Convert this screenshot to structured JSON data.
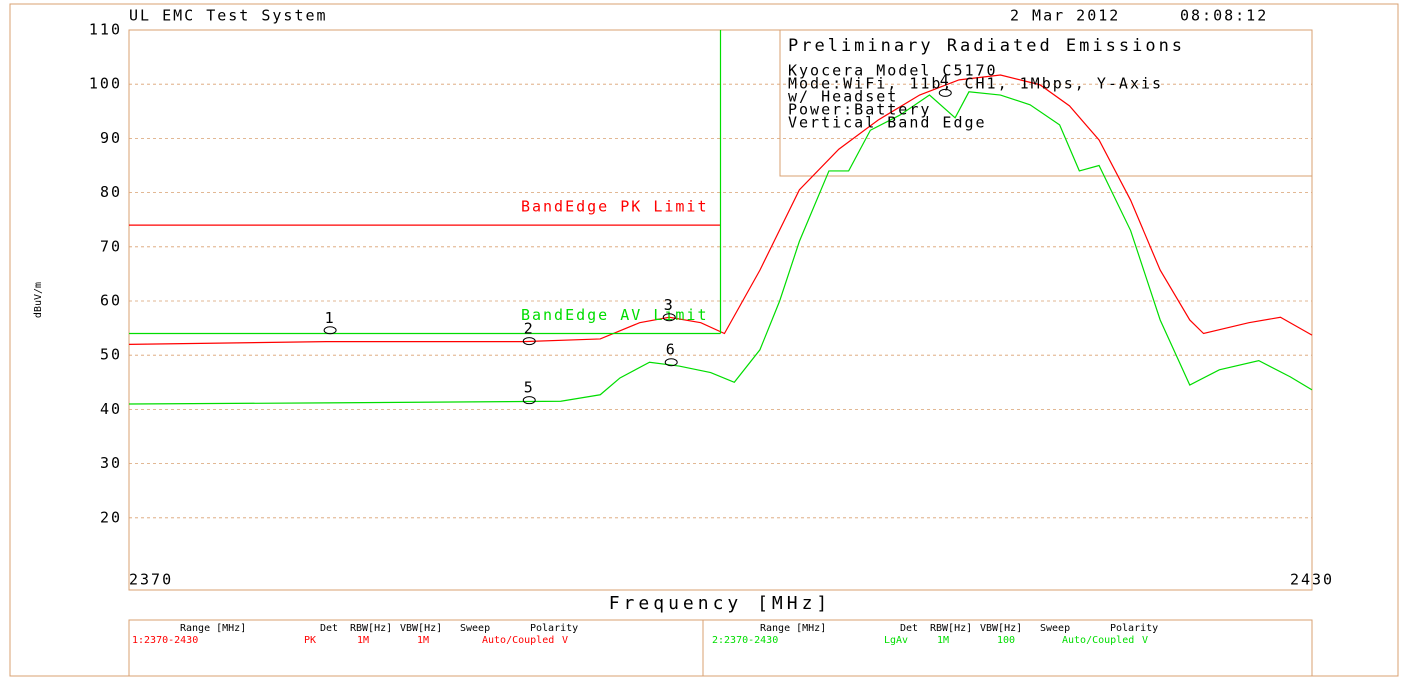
{
  "header": {
    "system": "UL EMC Test System",
    "date": "2 Mar 2012",
    "time": "08:08:12"
  },
  "chart_data": {
    "type": "line",
    "ylabel": "dBuV/m",
    "xlabel": "Frequency [MHz]",
    "xlim": [
      2370,
      2430
    ],
    "xticks": [
      2370,
      2430
    ],
    "ylim": [
      10,
      110
    ],
    "yticks": [
      20,
      30,
      40,
      50,
      60,
      70,
      80,
      90,
      100,
      110
    ],
    "grid": true,
    "series": [
      {
        "name": "PK",
        "color": "#ff0000",
        "x": [
          2370,
          2380,
          2390,
          2393.9,
          2395.9,
          2397.4,
          2399,
          2400.2,
          2402,
          2404,
          2406,
          2408,
          2410.1,
          2412.1,
          2414.2,
          2416.2,
          2417.7,
          2419.2,
          2420.8,
          2422.3,
          2423.8,
          2424.5,
          2426.8,
          2428.4,
          2430
        ],
        "values": [
          52,
          52.5,
          52.5,
          53,
          56,
          57,
          56,
          54,
          65.7,
          80.5,
          88,
          93.4,
          98,
          100.8,
          101.7,
          99.9,
          96,
          89.7,
          78.6,
          65.7,
          56.5,
          54,
          56,
          57,
          53.7
        ]
      },
      {
        "name": "LgAv",
        "color": "#00dd00",
        "x": [
          2370,
          2380,
          2391.9,
          2393.9,
          2394.9,
          2396.4,
          2397.9,
          2399.5,
          2400.7,
          2402,
          2403,
          2404,
          2405.5,
          2406.5,
          2407.6,
          2409.1,
          2410.6,
          2411.9,
          2412.6,
          2414.2,
          2415.7,
          2417.2,
          2418.2,
          2419.2,
          2420.8,
          2422.3,
          2423.8,
          2425.3,
          2427.3,
          2428.9,
          2430
        ],
        "values": [
          41,
          41.2,
          41.5,
          42.7,
          45.8,
          48.7,
          48,
          46.8,
          45,
          51,
          60,
          71,
          84,
          84,
          91.5,
          94.3,
          98,
          93.8,
          98.6,
          98,
          96.2,
          92.5,
          84,
          85,
          73,
          56.5,
          44.5,
          47.3,
          49,
          46,
          43.6
        ]
      }
    ],
    "limits": [
      {
        "label": "BandEdge PK Limit",
        "value": 74,
        "x": [
          2370,
          2400
        ],
        "color": "#ff0000"
      },
      {
        "label": "BandEdge AV Limit",
        "value": 54,
        "x": [
          2370,
          2400
        ],
        "color": "#00dd00"
      }
    ],
    "band_edge": {
      "x": 2400,
      "ylim": [
        54,
        110
      ],
      "color": "#00dd00"
    },
    "markers": [
      {
        "label": "1",
        "x": 2380.2,
        "value": 54.6
      },
      {
        "label": "2",
        "x": 2390.3,
        "value": 52.6
      },
      {
        "label": "3",
        "x": 2397.4,
        "value": 57
      },
      {
        "label": "4",
        "x": 2411.4,
        "value": 98.4
      },
      {
        "label": "5",
        "x": 2390.3,
        "value": 41.7
      },
      {
        "label": "6",
        "x": 2397.5,
        "value": 48.7
      }
    ]
  },
  "info": {
    "title": "Preliminary Radiated Emissions",
    "lines": [
      "Kyocera Model C5170",
      "Mode:WiFi, 11b, CH1, 1Mbps, Y-Axis",
      "w/ Headset",
      "Power:Battery",
      "Vertical Band Edge"
    ]
  },
  "table": {
    "headers": [
      "Range [MHz]",
      "Det",
      "RBW[Hz]",
      "VBW[Hz]",
      "Sweep",
      "Polarity"
    ],
    "rows": [
      [
        "1:2370-2430",
        "PK",
        "1M",
        "1M",
        "Auto/Coupled",
        "V"
      ],
      [
        "2:2370-2430",
        "LgAv",
        "1M",
        "100",
        "Auto/Coupled",
        "V"
      ]
    ]
  }
}
